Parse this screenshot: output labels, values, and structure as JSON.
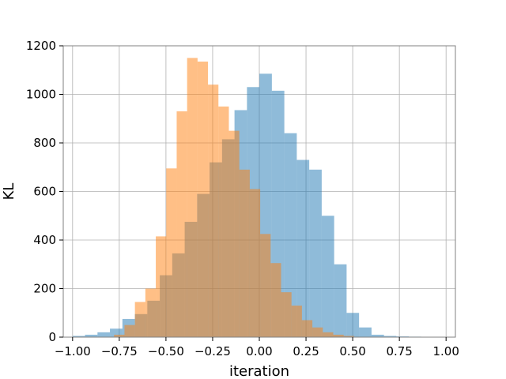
{
  "chart_data": {
    "type": "bar",
    "title": "",
    "xlabel": "iteration",
    "ylabel": "KL",
    "xlim": [
      -1.05,
      1.05
    ],
    "ylim": [
      0,
      1200
    ],
    "xticks": [
      -1.0,
      -0.75,
      -0.5,
      -0.25,
      0.0,
      0.25,
      0.5,
      0.75,
      1.0
    ],
    "xtick_labels": [
      "−1.00",
      "−0.75",
      "−0.50",
      "−0.25",
      "0.00",
      "0.25",
      "0.50",
      "0.75",
      "1.00"
    ],
    "yticks": [
      0,
      200,
      400,
      600,
      800,
      1000,
      1200
    ],
    "ytick_labels": [
      "0",
      "200",
      "400",
      "600",
      "800",
      "1000",
      "1200"
    ],
    "grid": true,
    "legend": null,
    "series": [
      {
        "color": "#1f77b4",
        "opacity": 0.5,
        "bin_start": -1.0,
        "bin_width": 0.0667,
        "values": [
          5,
          10,
          20,
          35,
          75,
          95,
          150,
          255,
          345,
          475,
          590,
          720,
          815,
          935,
          1030,
          1085,
          1015,
          840,
          730,
          690,
          500,
          300,
          100,
          40,
          10,
          5,
          3,
          2,
          1,
          0
        ]
      },
      {
        "color": "#ff7f0e",
        "opacity": 0.5,
        "bin_start": -0.778,
        "bin_width": 0.0559,
        "values": [
          10,
          50,
          145,
          200,
          415,
          695,
          930,
          1150,
          1135,
          1040,
          950,
          850,
          690,
          610,
          425,
          305,
          185,
          130,
          70,
          40,
          20,
          10,
          5,
          1,
          1
        ]
      }
    ]
  }
}
